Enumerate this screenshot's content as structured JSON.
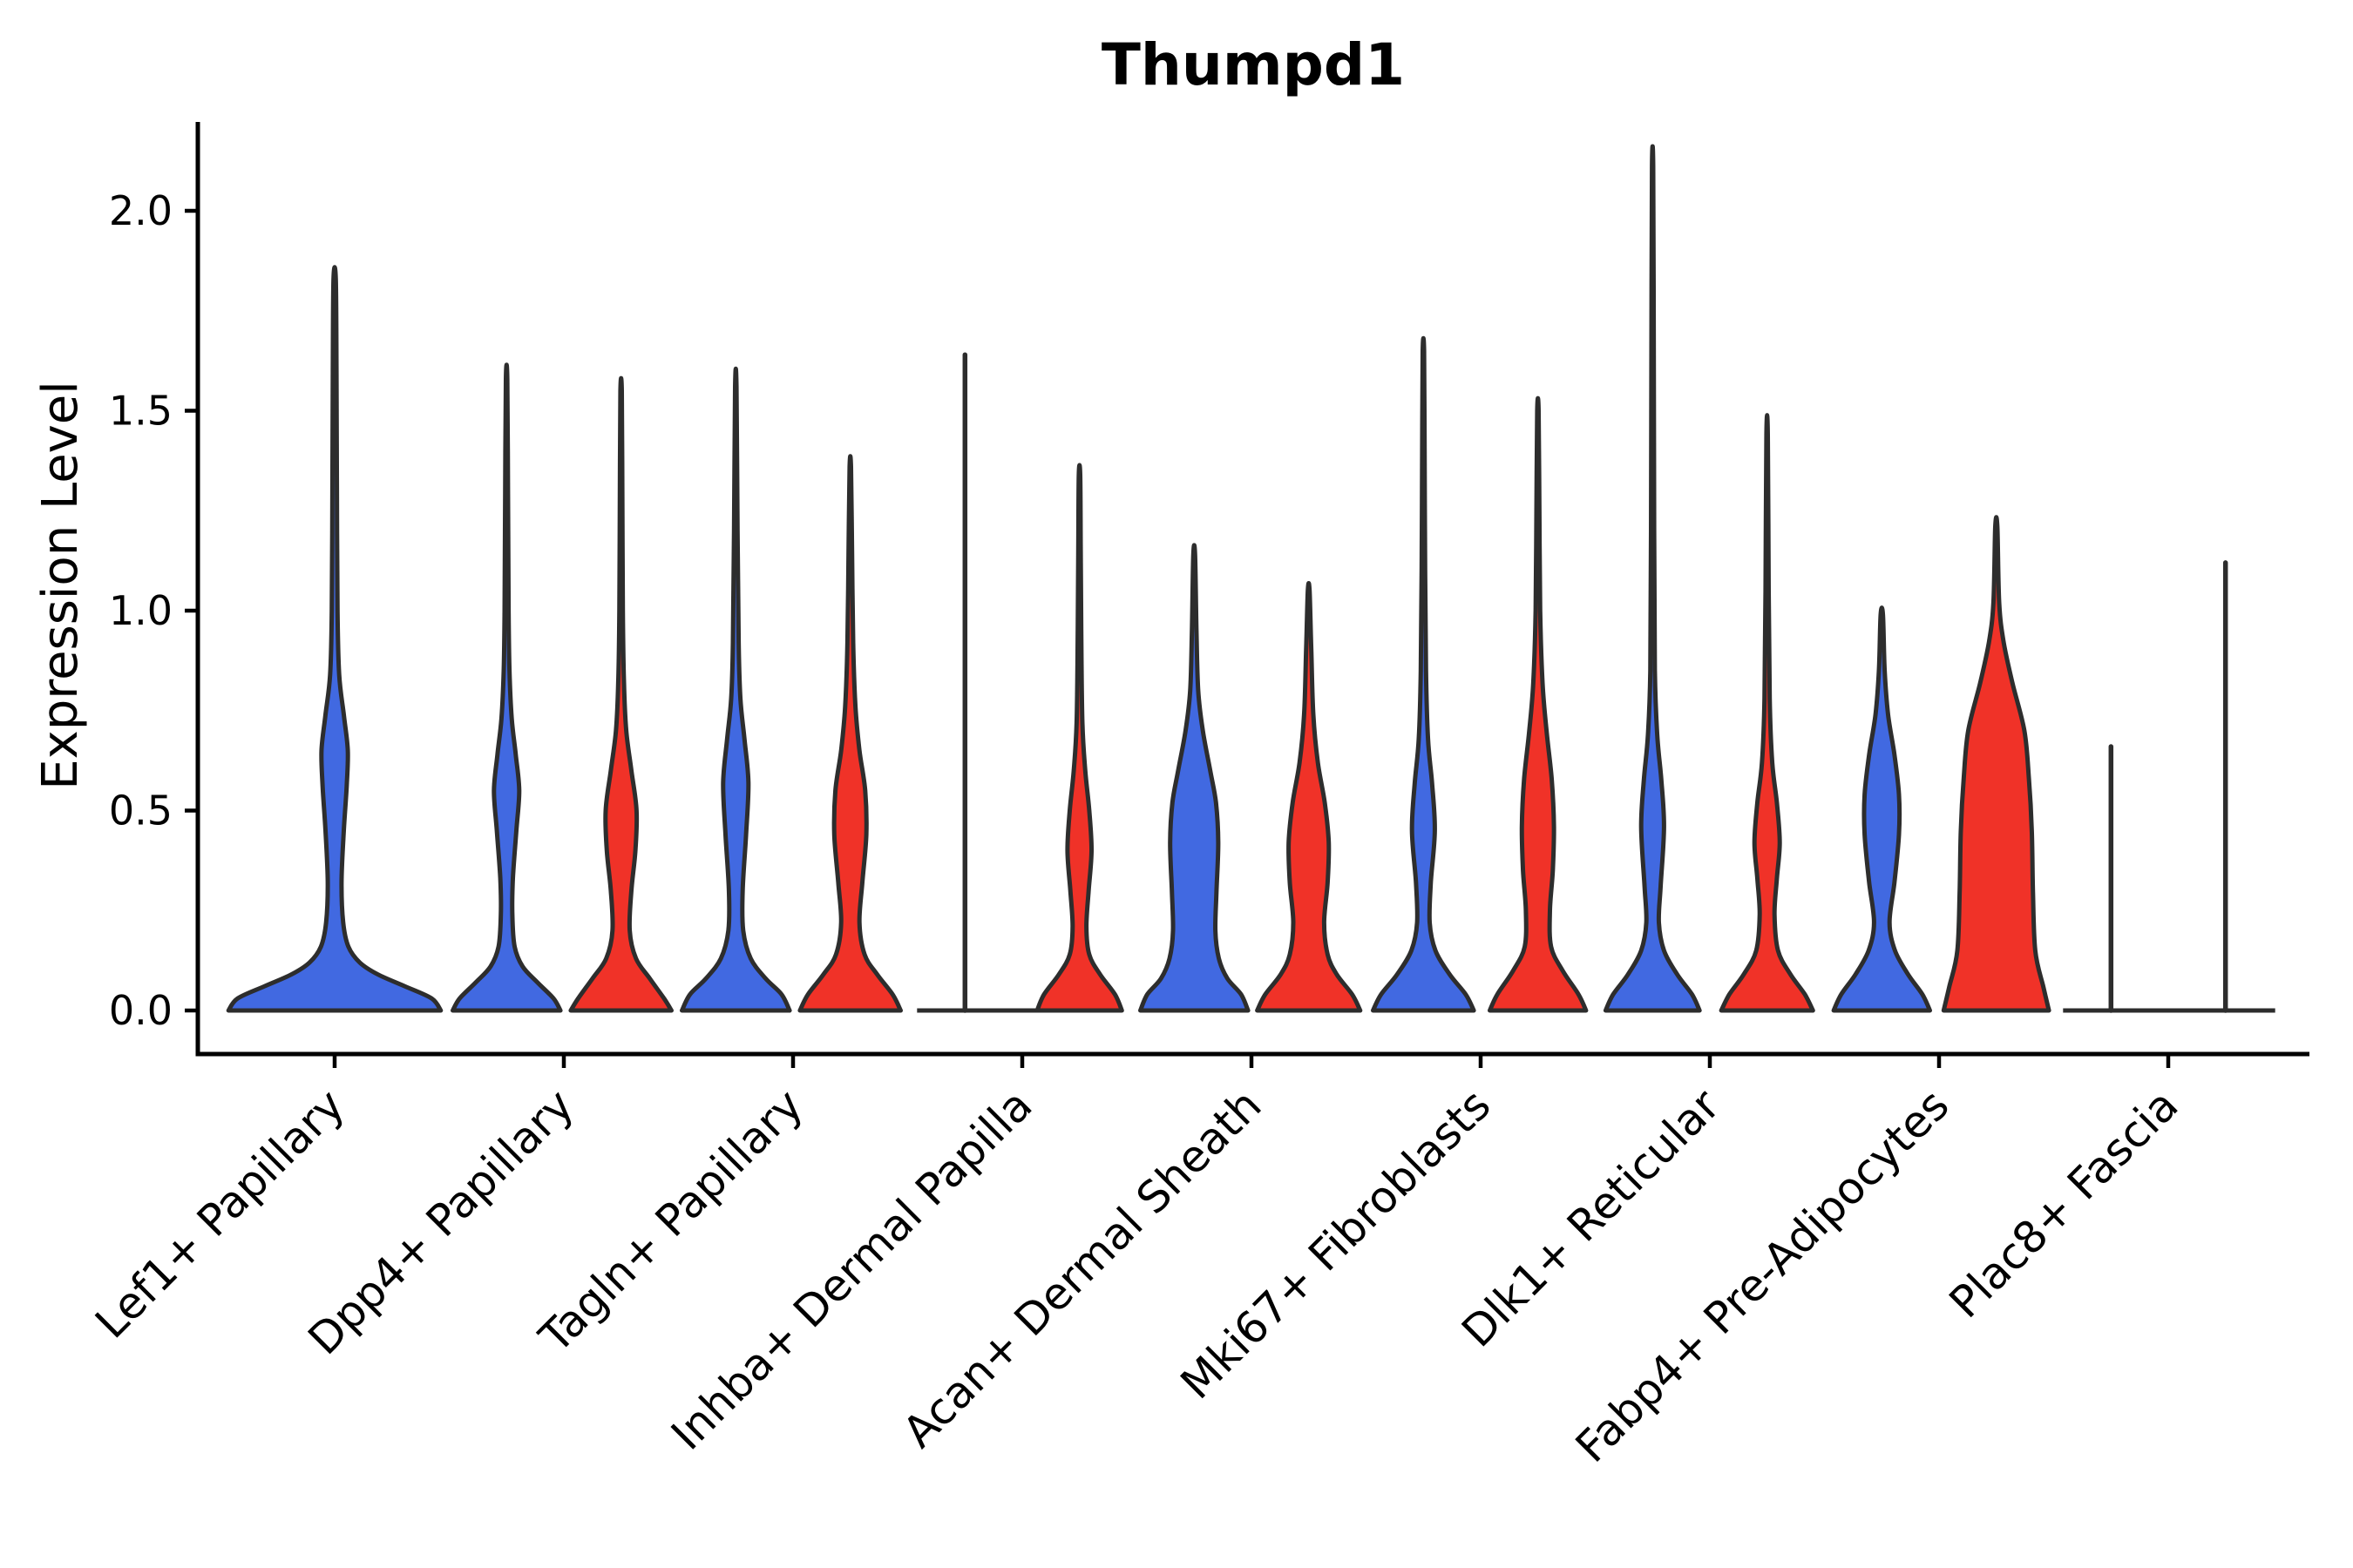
{
  "chart_data": {
    "type": "violin",
    "title": "Thumpd1",
    "ylabel": "Expression Level",
    "xlabel": "",
    "ylim": [
      -0.11,
      2.22
    ],
    "grid": false,
    "legend": "none",
    "yticks": [
      {
        "label": "0.0",
        "value": 0.0
      },
      {
        "label": "0.5",
        "value": 0.5
      },
      {
        "label": "1.0",
        "value": 1.0
      },
      {
        "label": "1.5",
        "value": 1.5
      },
      {
        "label": "2.0",
        "value": 2.0
      }
    ],
    "split_colors": {
      "blue": "#4169E1",
      "red": "#F03228"
    },
    "outline_color": "#2d2d2d",
    "categories": [
      "Lef1+ Papillary",
      "Dpp4+ Papillary",
      "Tagln+ Papillary",
      "Inhba+ Dermal Papilla",
      "Acan+ Dermal Sheath",
      "Mki67+ Fibroblasts",
      "Dlk1+ Reticular",
      "Fabp4+ Pre-Adipocytes",
      "Plac8+ Fascia"
    ],
    "groups": [
      {
        "category": "Lef1+ Papillary",
        "violins": [
          {
            "split": "full",
            "color": "blue",
            "kind": "violin",
            "max": 1.83,
            "profile": [
              [
                0,
                0.93
              ],
              [
                0.03,
                0.85
              ],
              [
                0.06,
                0.62
              ],
              [
                0.09,
                0.38
              ],
              [
                0.12,
                0.22
              ],
              [
                0.16,
                0.12
              ],
              [
                0.22,
                0.075
              ],
              [
                0.32,
                0.06
              ],
              [
                0.45,
                0.08
              ],
              [
                0.56,
                0.105
              ],
              [
                0.65,
                0.115
              ],
              [
                0.74,
                0.08
              ],
              [
                0.84,
                0.04
              ],
              [
                1.0,
                0.025
              ],
              [
                1.3,
                0.02
              ],
              [
                1.6,
                0.016
              ],
              [
                1.83,
                0.01
              ]
            ]
          }
        ]
      },
      {
        "category": "Dpp4+ Papillary",
        "violins": [
          {
            "split": "left",
            "color": "blue",
            "kind": "violin",
            "max": 1.58,
            "profile": [
              [
                0,
                0.94
              ],
              [
                0.03,
                0.82
              ],
              [
                0.07,
                0.54
              ],
              [
                0.11,
                0.28
              ],
              [
                0.16,
                0.14
              ],
              [
                0.24,
                0.1
              ],
              [
                0.33,
                0.11
              ],
              [
                0.45,
                0.17
              ],
              [
                0.55,
                0.22
              ],
              [
                0.64,
                0.16
              ],
              [
                0.73,
                0.09
              ],
              [
                0.85,
                0.05
              ],
              [
                1.0,
                0.035
              ],
              [
                1.3,
                0.025
              ],
              [
                1.58,
                0.012
              ]
            ]
          },
          {
            "split": "right",
            "color": "red",
            "kind": "violin",
            "max": 1.55,
            "profile": [
              [
                0,
                0.88
              ],
              [
                0.03,
                0.75
              ],
              [
                0.08,
                0.5
              ],
              [
                0.13,
                0.26
              ],
              [
                0.2,
                0.15
              ],
              [
                0.3,
                0.18
              ],
              [
                0.4,
                0.25
              ],
              [
                0.5,
                0.27
              ],
              [
                0.6,
                0.18
              ],
              [
                0.7,
                0.09
              ],
              [
                0.82,
                0.05
              ],
              [
                1.0,
                0.03
              ],
              [
                1.3,
                0.022
              ],
              [
                1.55,
                0.012
              ]
            ]
          }
        ]
      },
      {
        "category": "Tagln+ Papillary",
        "violins": [
          {
            "split": "left",
            "color": "blue",
            "kind": "violin",
            "max": 1.56,
            "profile": [
              [
                0,
                0.94
              ],
              [
                0.04,
                0.8
              ],
              [
                0.08,
                0.52
              ],
              [
                0.13,
                0.26
              ],
              [
                0.2,
                0.13
              ],
              [
                0.3,
                0.12
              ],
              [
                0.44,
                0.18
              ],
              [
                0.57,
                0.22
              ],
              [
                0.68,
                0.15
              ],
              [
                0.78,
                0.08
              ],
              [
                0.92,
                0.05
              ],
              [
                1.2,
                0.03
              ],
              [
                1.56,
                0.012
              ]
            ]
          },
          {
            "split": "right",
            "color": "red",
            "kind": "violin",
            "max": 1.36,
            "profile": [
              [
                0,
                0.88
              ],
              [
                0.04,
                0.74
              ],
              [
                0.09,
                0.47
              ],
              [
                0.14,
                0.25
              ],
              [
                0.22,
                0.16
              ],
              [
                0.32,
                0.21
              ],
              [
                0.44,
                0.28
              ],
              [
                0.55,
                0.26
              ],
              [
                0.65,
                0.16
              ],
              [
                0.76,
                0.09
              ],
              [
                0.92,
                0.05
              ],
              [
                1.15,
                0.03
              ],
              [
                1.36,
                0.012
              ]
            ]
          }
        ]
      },
      {
        "category": "Inhba+ Dermal Papilla",
        "violins": [
          {
            "split": "left",
            "color": "blue",
            "kind": "line",
            "max": 1.64,
            "baseline": [
              55,
              84
            ]
          },
          {
            "split": "right",
            "color": "red",
            "kind": "violin",
            "max": 1.34,
            "profile": [
              [
                0,
                0.74
              ],
              [
                0.04,
                0.62
              ],
              [
                0.09,
                0.36
              ],
              [
                0.14,
                0.17
              ],
              [
                0.21,
                0.12
              ],
              [
                0.3,
                0.16
              ],
              [
                0.4,
                0.21
              ],
              [
                0.5,
                0.17
              ],
              [
                0.6,
                0.1
              ],
              [
                0.72,
                0.05
              ],
              [
                0.95,
                0.03
              ],
              [
                1.15,
                0.022
              ],
              [
                1.34,
                0.012
              ]
            ]
          }
        ]
      },
      {
        "category": "Acan+ Dermal Sheath",
        "violins": [
          {
            "split": "left",
            "color": "blue",
            "kind": "violin",
            "max": 1.14,
            "profile": [
              [
                0,
                0.94
              ],
              [
                0.04,
                0.82
              ],
              [
                0.08,
                0.58
              ],
              [
                0.13,
                0.43
              ],
              [
                0.2,
                0.37
              ],
              [
                0.3,
                0.39
              ],
              [
                0.42,
                0.42
              ],
              [
                0.52,
                0.38
              ],
              [
                0.6,
                0.28
              ],
              [
                0.7,
                0.15
              ],
              [
                0.8,
                0.07
              ],
              [
                0.95,
                0.04
              ],
              [
                1.14,
                0.015
              ]
            ]
          },
          {
            "split": "right",
            "color": "red",
            "kind": "violin",
            "max": 1.05,
            "profile": [
              [
                0,
                0.9
              ],
              [
                0.04,
                0.76
              ],
              [
                0.09,
                0.49
              ],
              [
                0.14,
                0.33
              ],
              [
                0.22,
                0.27
              ],
              [
                0.32,
                0.33
              ],
              [
                0.42,
                0.35
              ],
              [
                0.52,
                0.28
              ],
              [
                0.62,
                0.16
              ],
              [
                0.74,
                0.08
              ],
              [
                0.9,
                0.045
              ],
              [
                1.05,
                0.015
              ]
            ]
          }
        ]
      },
      {
        "category": "Mki67+ Fibroblasts",
        "violins": [
          {
            "split": "left",
            "color": "blue",
            "kind": "violin",
            "max": 1.65,
            "profile": [
              [
                0,
                0.88
              ],
              [
                0.04,
                0.74
              ],
              [
                0.09,
                0.46
              ],
              [
                0.15,
                0.21
              ],
              [
                0.22,
                0.11
              ],
              [
                0.32,
                0.13
              ],
              [
                0.45,
                0.2
              ],
              [
                0.57,
                0.15
              ],
              [
                0.68,
                0.08
              ],
              [
                0.85,
                0.045
              ],
              [
                1.1,
                0.03
              ],
              [
                1.4,
                0.022
              ],
              [
                1.65,
                0.012
              ]
            ]
          },
          {
            "split": "right",
            "color": "red",
            "kind": "violin",
            "max": 1.5,
            "profile": [
              [
                0,
                0.84
              ],
              [
                0.04,
                0.71
              ],
              [
                0.1,
                0.43
              ],
              [
                0.16,
                0.23
              ],
              [
                0.25,
                0.21
              ],
              [
                0.35,
                0.26
              ],
              [
                0.46,
                0.28
              ],
              [
                0.58,
                0.24
              ],
              [
                0.7,
                0.15
              ],
              [
                0.82,
                0.08
              ],
              [
                1.0,
                0.04
              ],
              [
                1.25,
                0.026
              ],
              [
                1.5,
                0.012
              ]
            ]
          }
        ]
      },
      {
        "category": "Dlk1+ Reticular",
        "violins": [
          {
            "split": "left",
            "color": "blue",
            "kind": "violin",
            "max": 2.11,
            "profile": [
              [
                0,
                0.82
              ],
              [
                0.04,
                0.69
              ],
              [
                0.09,
                0.43
              ],
              [
                0.15,
                0.2
              ],
              [
                0.22,
                0.11
              ],
              [
                0.31,
                0.14
              ],
              [
                0.46,
                0.2
              ],
              [
                0.58,
                0.15
              ],
              [
                0.69,
                0.08
              ],
              [
                0.85,
                0.04
              ],
              [
                1.2,
                0.028
              ],
              [
                1.7,
                0.02
              ],
              [
                2.11,
                0.011
              ]
            ]
          },
          {
            "split": "right",
            "color": "red",
            "kind": "violin",
            "max": 1.44,
            "profile": [
              [
                0,
                0.8
              ],
              [
                0.04,
                0.66
              ],
              [
                0.09,
                0.41
              ],
              [
                0.15,
                0.19
              ],
              [
                0.24,
                0.13
              ],
              [
                0.33,
                0.17
              ],
              [
                0.42,
                0.22
              ],
              [
                0.52,
                0.17
              ],
              [
                0.62,
                0.09
              ],
              [
                0.78,
                0.045
              ],
              [
                1.05,
                0.028
              ],
              [
                1.44,
                0.012
              ]
            ]
          }
        ]
      },
      {
        "category": "Fabp4+ Pre-Adipocytes",
        "violins": [
          {
            "split": "left",
            "color": "blue",
            "kind": "violin",
            "max": 0.99,
            "profile": [
              [
                0,
                0.84
              ],
              [
                0.04,
                0.71
              ],
              [
                0.09,
                0.46
              ],
              [
                0.15,
                0.23
              ],
              [
                0.22,
                0.135
              ],
              [
                0.32,
                0.22
              ],
              [
                0.44,
                0.3
              ],
              [
                0.54,
                0.3
              ],
              [
                0.64,
                0.22
              ],
              [
                0.74,
                0.11
              ],
              [
                0.85,
                0.05
              ],
              [
                0.99,
                0.02
              ]
            ]
          },
          {
            "split": "right",
            "color": "red",
            "kind": "violin",
            "max": 1.21,
            "profile": [
              [
                0,
                0.92
              ],
              [
                0.06,
                0.82
              ],
              [
                0.15,
                0.68
              ],
              [
                0.3,
                0.64
              ],
              [
                0.45,
                0.62
              ],
              [
                0.58,
                0.57
              ],
              [
                0.7,
                0.49
              ],
              [
                0.82,
                0.28
              ],
              [
                0.92,
                0.13
              ],
              [
                1.02,
                0.05
              ],
              [
                1.21,
                0.018
              ]
            ]
          }
        ]
      },
      {
        "category": "Plac8+ Fascia",
        "violins": [
          {
            "split": "left",
            "color": "blue",
            "kind": "line",
            "max": 0.66,
            "baseline": [
              55,
              66
            ]
          },
          {
            "split": "right",
            "color": "red",
            "kind": "line",
            "max": 1.12,
            "baseline": [
              66,
              57
            ]
          }
        ]
      }
    ]
  }
}
